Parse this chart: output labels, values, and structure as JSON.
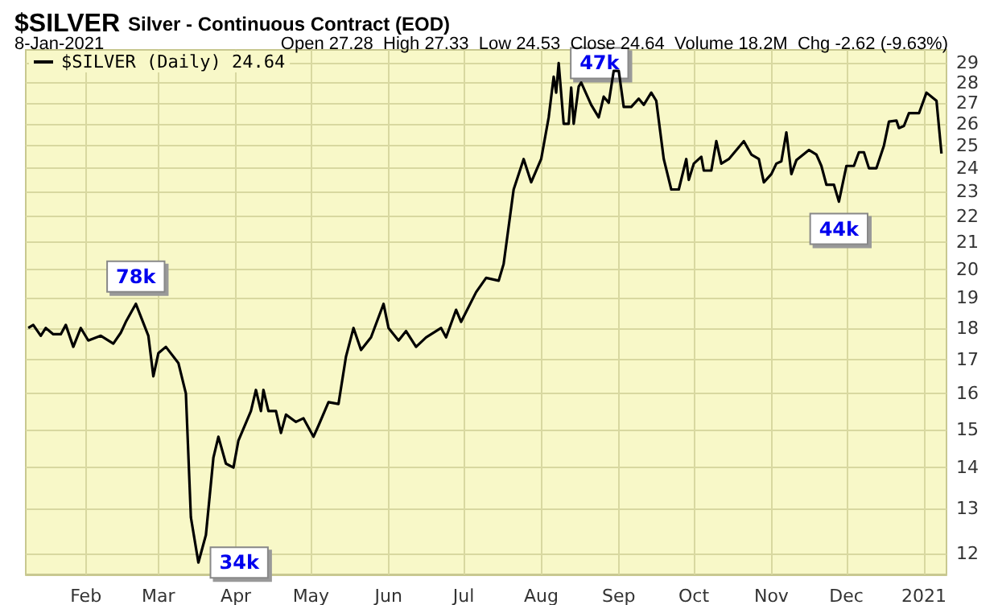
{
  "chart_data": {
    "type": "line",
    "title": "$SILVER Silver - Continuous Contract (EOD)",
    "subtitle": "8-Jan-2021",
    "annotations": [
      "Open 27.28  High 27.33  Low 24.53  Close 24.64  Volume 18.2M  Chg -2.62 (-9.63%)",
      {
        "text": "78k",
        "x": "2020-02-21",
        "y": 18.8
      },
      {
        "text": "34k",
        "x": "2020-03-17",
        "y": 11.8
      },
      {
        "text": "47k",
        "x": "2020-08-08",
        "y": 29.0
      },
      {
        "text": "44k",
        "x": "2020-11-28",
        "y": 22.6
      }
    ],
    "x": [
      "2020-01-09",
      "2020-01-11",
      "2020-01-14",
      "2020-01-16",
      "2020-01-19",
      "2020-01-22",
      "2020-01-24",
      "2020-01-27",
      "2020-01-30",
      "2020-02-02",
      "2020-02-07",
      "2020-02-12",
      "2020-02-15",
      "2020-02-17",
      "2020-02-21",
      "2020-02-26",
      "2020-02-28",
      "2020-03-01",
      "2020-03-04",
      "2020-03-09",
      "2020-03-12",
      "2020-03-14",
      "2020-03-17",
      "2020-03-20",
      "2020-03-23",
      "2020-03-25",
      "2020-03-28",
      "2020-03-31",
      "2020-04-02",
      "2020-04-07",
      "2020-04-09",
      "2020-04-11",
      "2020-04-12",
      "2020-04-14",
      "2020-04-17",
      "2020-04-19",
      "2020-04-21",
      "2020-04-25",
      "2020-04-28",
      "2020-05-02",
      "2020-05-04",
      "2020-05-08",
      "2020-05-12",
      "2020-05-15",
      "2020-05-18",
      "2020-05-21",
      "2020-05-25",
      "2020-05-30",
      "2020-06-01",
      "2020-06-05",
      "2020-06-08",
      "2020-06-12",
      "2020-06-16",
      "2020-06-22",
      "2020-06-24",
      "2020-06-28",
      "2020-06-30",
      "2020-07-06",
      "2020-07-10",
      "2020-07-15",
      "2020-07-17",
      "2020-07-21",
      "2020-07-25",
      "2020-07-28",
      "2020-08-01",
      "2020-08-04",
      "2020-08-06",
      "2020-08-07",
      "2020-08-08",
      "2020-08-10",
      "2020-08-12",
      "2020-08-13",
      "2020-08-14",
      "2020-08-16",
      "2020-08-17",
      "2020-08-21",
      "2020-08-24",
      "2020-08-26",
      "2020-08-28",
      "2020-08-30",
      "2020-09-01",
      "2020-09-03",
      "2020-09-06",
      "2020-09-09",
      "2020-09-11",
      "2020-09-14",
      "2020-09-16",
      "2020-09-19",
      "2020-09-22",
      "2020-09-25",
      "2020-09-28",
      "2020-09-29",
      "2020-10-01",
      "2020-10-04",
      "2020-10-05",
      "2020-10-08",
      "2020-10-10",
      "2020-10-12",
      "2020-10-15",
      "2020-10-21",
      "2020-10-24",
      "2020-10-27",
      "2020-10-29",
      "2020-11-01",
      "2020-11-03",
      "2020-11-05",
      "2020-11-07",
      "2020-11-09",
      "2020-11-11",
      "2020-11-16",
      "2020-11-19",
      "2020-11-21",
      "2020-11-23",
      "2020-11-26",
      "2020-11-28",
      "2020-12-01",
      "2020-12-04",
      "2020-12-06",
      "2020-12-08",
      "2020-12-10",
      "2020-12-13",
      "2020-12-16",
      "2020-12-18",
      "2020-12-21",
      "2020-12-22",
      "2020-12-24",
      "2020-12-26",
      "2020-12-30",
      "2021-01-02",
      "2021-01-04",
      "2021-01-06",
      "2021-01-08"
    ],
    "series": [
      {
        "name": "$SILVER (Daily) 24.64",
        "color": "#000000",
        "values": [
          18.0,
          18.1,
          17.75,
          18.0,
          17.8,
          17.8,
          18.1,
          17.4,
          18.0,
          17.6,
          17.75,
          17.5,
          17.85,
          18.2,
          18.8,
          17.75,
          16.5,
          17.2,
          17.4,
          16.9,
          16.0,
          12.8,
          11.8,
          12.4,
          14.25,
          14.8,
          14.1,
          14.0,
          14.7,
          15.5,
          16.1,
          15.5,
          16.1,
          15.5,
          15.5,
          14.9,
          15.4,
          15.2,
          15.3,
          14.8,
          15.1,
          15.75,
          15.7,
          17.1,
          18.0,
          17.3,
          17.7,
          18.8,
          18.0,
          17.6,
          17.9,
          17.4,
          17.7,
          18.0,
          17.7,
          18.6,
          18.2,
          19.2,
          19.7,
          19.6,
          20.2,
          23.1,
          24.4,
          23.4,
          24.4,
          26.3,
          28.3,
          27.5,
          29.0,
          26.0,
          26.0,
          27.75,
          26.0,
          27.8,
          28.0,
          26.9,
          26.3,
          27.3,
          27.0,
          28.6,
          28.6,
          26.8,
          26.8,
          27.2,
          26.9,
          27.5,
          27.1,
          24.4,
          23.1,
          23.1,
          24.4,
          23.5,
          24.2,
          24.5,
          23.9,
          23.9,
          25.2,
          24.2,
          24.4,
          25.2,
          24.6,
          24.4,
          23.4,
          23.75,
          24.2,
          24.3,
          25.6,
          23.75,
          24.35,
          24.8,
          24.6,
          24.1,
          23.3,
          23.3,
          22.6,
          24.1,
          24.1,
          24.7,
          24.7,
          24.0,
          24.0,
          25.0,
          26.1,
          26.15,
          25.8,
          25.9,
          26.5,
          26.5,
          27.5,
          27.3,
          27.1,
          24.64
        ]
      }
    ],
    "xlim": [
      "2020-01-08",
      "2021-01-10"
    ],
    "xticks": [
      {
        "value": "2020-02-01",
        "label": "Feb"
      },
      {
        "value": "2020-03-01",
        "label": "Mar"
      },
      {
        "value": "2020-04-01",
        "label": "Apr"
      },
      {
        "value": "2020-05-01",
        "label": "May"
      },
      {
        "value": "2020-06-01",
        "label": "Jun"
      },
      {
        "value": "2020-07-01",
        "label": "Jul"
      },
      {
        "value": "2020-08-01",
        "label": "Aug"
      },
      {
        "value": "2020-09-01",
        "label": "Sep"
      },
      {
        "value": "2020-10-01",
        "label": "Oct"
      },
      {
        "value": "2020-11-01",
        "label": "Nov"
      },
      {
        "value": "2020-12-01",
        "label": "Dec"
      },
      {
        "value": "2021-01-01",
        "label": "2021"
      }
    ],
    "ylim": [
      11.55,
      29.7
    ],
    "yticks": [
      12,
      13,
      14,
      15,
      16,
      17,
      18,
      19,
      20,
      21,
      22,
      23,
      24,
      25,
      26,
      27,
      28,
      29
    ],
    "log": "y",
    "grid": true,
    "legend": "top left",
    "marker": "none",
    "line_style": "solid"
  }
}
